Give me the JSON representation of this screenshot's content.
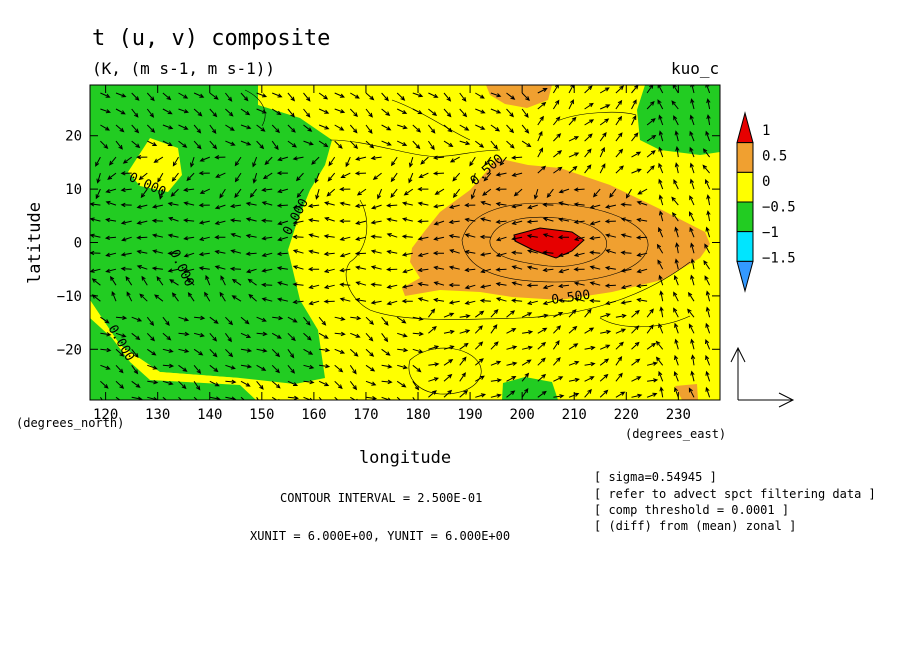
{
  "chart_data": {
    "type": "heatmap",
    "title": "t (u, v) composite",
    "subtitle": "(K, (m s-1, m s-1))",
    "corner_label": "kuo_c",
    "xlabel": "longitude",
    "ylabel": "latitude",
    "x_unit_label": "(degrees_east)",
    "y_unit_label": "(degrees_north)",
    "xlim": [
      117,
      238
    ],
    "ylim": [
      -29.5,
      29.5
    ],
    "x_ticks": [
      "120",
      "130",
      "140",
      "150",
      "160",
      "170",
      "180",
      "190",
      "200",
      "210",
      "220",
      "230"
    ],
    "x_tick_values": [
      120,
      130,
      140,
      150,
      160,
      170,
      180,
      190,
      200,
      210,
      220,
      230
    ],
    "y_ticks": [
      "20",
      "10",
      "0",
      "−10",
      "−20"
    ],
    "y_tick_values": [
      20,
      10,
      0,
      -10,
      -20
    ],
    "colorbar": {
      "labels": [
        "1",
        "0.5",
        "0",
        "−0.5",
        "−1",
        "−1.5"
      ],
      "colors": [
        "#e60000",
        "#f0a030",
        "#ffff00",
        "#22cc22",
        "#00e5ff",
        "#3399ff"
      ]
    },
    "contour_labels": [
      "0.500",
      "0.500",
      "0.000",
      "0.000",
      "0.000",
      "0.000"
    ],
    "notes": {
      "contour_interval": "CONTOUR INTERVAL = 2.500E-01",
      "units": "XUNIT = 6.000E+00, YUNIT = 6.000E+00",
      "info": [
        "[ sigma=0.54945 ]",
        "[ refer to advect spct filtering data ]",
        "[ comp threshold = 0.0001 ]",
        "[ (diff) from (mean) zonal ]"
      ]
    },
    "colors": {
      "yellow": "#ffff00",
      "green": "#22cc22",
      "orange": "#f0a030",
      "red": "#e60000"
    }
  }
}
